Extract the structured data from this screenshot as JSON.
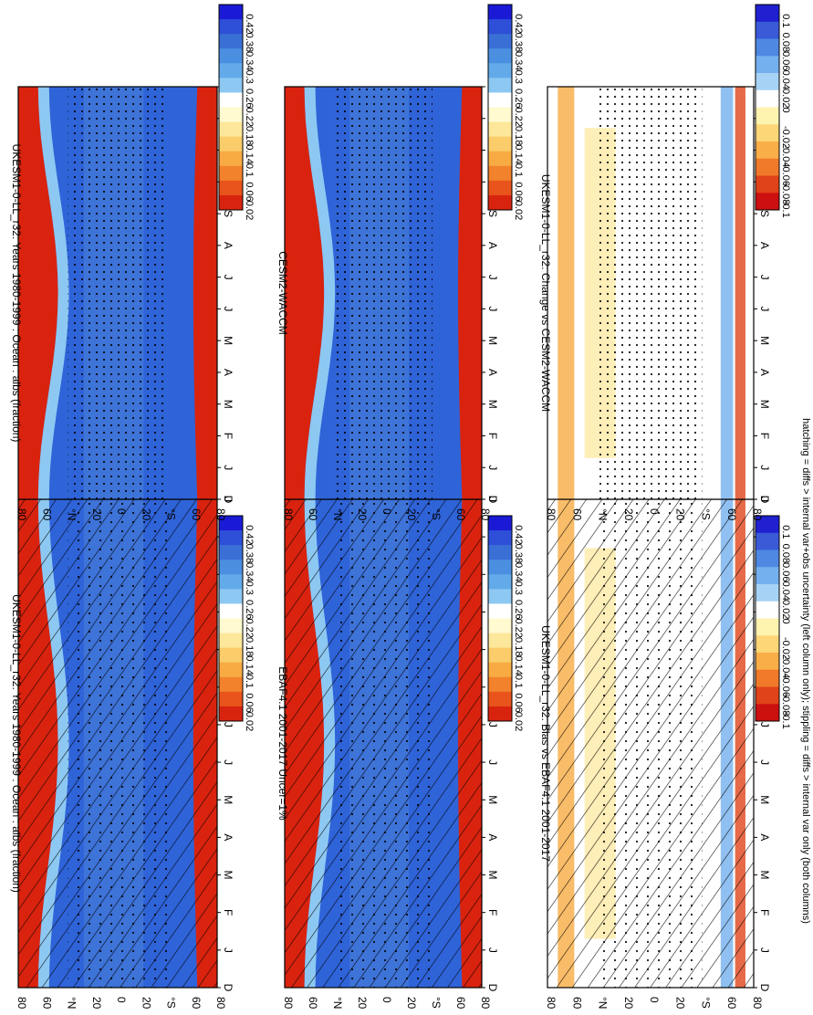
{
  "footer_note": "hatching = diffs > internal var+obs uncertainty (left column only); stippling = diffs > internal var only (both columns)",
  "axis_labels": {
    "months": [
      "D",
      "J",
      "F",
      "M",
      "A",
      "M",
      "J",
      "J",
      "A",
      "S",
      "O",
      "N",
      "D",
      "J"
    ],
    "lat_ticks": [
      "80",
      "60",
      "°N",
      "20",
      "0",
      "20",
      "°S",
      "60",
      "80"
    ]
  },
  "colors": {
    "abs_scale": [
      "#1a1ad6",
      "#2e4fd8",
      "#3a6fd6",
      "#4a8fe0",
      "#62aaea",
      "#8dc8f2",
      "#ffffff",
      "#fffad0",
      "#fde79a",
      "#fbcd6a",
      "#f8ab43",
      "#f2822b",
      "#e8541c",
      "#d8240f"
    ],
    "diff_scale": [
      "#2020d0",
      "#3a5ad8",
      "#4f88e2",
      "#74b0ee",
      "#a6d2f6",
      "#ffffff",
      "#fff3b0",
      "#fdd677",
      "#f9ae48",
      "#f07a2a",
      "#e0431a",
      "#cc1010"
    ],
    "ocean_fill": "#2f63d8",
    "ocean_fill_mid": "#4a7fd9",
    "high_lat": "#d9230f",
    "land_band": "#ffffff"
  },
  "chart_data": [
    {
      "type": "heatmap",
      "title": "UKESM1-0-LL_r32: Years 1980-1999 : Ocean : albs (fraction)",
      "xlabel": "",
      "ylabel": "",
      "x": [
        "D",
        "J",
        "F",
        "M",
        "A",
        "M",
        "J",
        "J",
        "A",
        "S",
        "O",
        "N",
        "D",
        "J"
      ],
      "y": [
        "80",
        "60",
        "°N",
        "20",
        "0",
        "20",
        "°S",
        "60",
        "80"
      ],
      "colorbar_ticks": [
        "0.42",
        "0.38",
        "0.34",
        "0.3",
        "0.26",
        "0.22",
        "0.18",
        "0.14",
        "0.1",
        "0.06",
        "0.02"
      ],
      "overlay": "hatching+stippling"
    },
    {
      "type": "heatmap",
      "title": "EBAF4.1 2001-2017 Uncer=1%",
      "x": [
        "D",
        "J",
        "F",
        "M",
        "A",
        "M",
        "J",
        "J",
        "A",
        "S",
        "O",
        "N",
        "D",
        "J"
      ],
      "y": [
        "80",
        "60",
        "°N",
        "20",
        "0",
        "20",
        "°S",
        "60",
        "80"
      ],
      "colorbar_ticks": [
        "0.42",
        "0.38",
        "0.34",
        "0.3",
        "0.26",
        "0.22",
        "0.18",
        "0.14",
        "0.1",
        "0.06",
        "0.02"
      ],
      "overlay": "hatching+stippling"
    },
    {
      "type": "heatmap",
      "title": "UKESM1-0-LL_r32: Bias vs EBAF4.1 2001-2017",
      "x": [
        "D",
        "J",
        "F",
        "M",
        "A",
        "M",
        "J",
        "J",
        "A",
        "S",
        "O",
        "N",
        "D",
        "J"
      ],
      "y": [
        "80",
        "60",
        "°N",
        "20",
        "0",
        "20",
        "°S",
        "60",
        "80"
      ],
      "colorbar_ticks": [
        "0.1",
        "0.08",
        "0.06",
        "0.04",
        "0.02",
        "0",
        "-0.02",
        "-0.04",
        "-0.06",
        "-0.08",
        "-0.1"
      ],
      "overlay": "hatching+stippling"
    },
    {
      "type": "heatmap",
      "title": "UKESM1-0-LL_r32: Years 1980-1999 : Ocean : albs (fraction)",
      "x": [
        "D",
        "J",
        "F",
        "M",
        "A",
        "M",
        "J",
        "J",
        "A",
        "S",
        "O",
        "N",
        "D",
        "J"
      ],
      "y": [
        "80",
        "60",
        "°N",
        "20",
        "0",
        "20",
        "°S",
        "60",
        "80"
      ],
      "colorbar_ticks": [
        "0.42",
        "0.38",
        "0.34",
        "0.3",
        "0.26",
        "0.22",
        "0.18",
        "0.14",
        "0.1",
        "0.06",
        "0.02"
      ],
      "overlay": "stippling"
    },
    {
      "type": "heatmap",
      "title": "CESM2-WACCM",
      "x": [
        "D",
        "J",
        "F",
        "M",
        "A",
        "M",
        "J",
        "J",
        "A",
        "S",
        "O",
        "N",
        "D",
        "J"
      ],
      "y": [
        "80",
        "60",
        "°N",
        "20",
        "0",
        "20",
        "°S",
        "60",
        "80"
      ],
      "colorbar_ticks": [
        "0.42",
        "0.38",
        "0.34",
        "0.3",
        "0.26",
        "0.22",
        "0.18",
        "0.14",
        "0.1",
        "0.06",
        "0.02"
      ],
      "overlay": "stippling"
    },
    {
      "type": "heatmap",
      "title": "UKESM1-0-LL_r32: Change vs CESM2-WACCM",
      "x": [
        "D",
        "J",
        "F",
        "M",
        "A",
        "M",
        "J",
        "J",
        "A",
        "S",
        "O",
        "N",
        "D",
        "J"
      ],
      "y": [
        "80",
        "60",
        "°N",
        "20",
        "0",
        "20",
        "°S",
        "60",
        "80"
      ],
      "colorbar_ticks": [
        "0.1",
        "0.08",
        "0.06",
        "0.04",
        "0.02",
        "0",
        "-0.02",
        "-0.04",
        "-0.06",
        "-0.08",
        "-0.1"
      ],
      "overlay": "stippling"
    }
  ]
}
